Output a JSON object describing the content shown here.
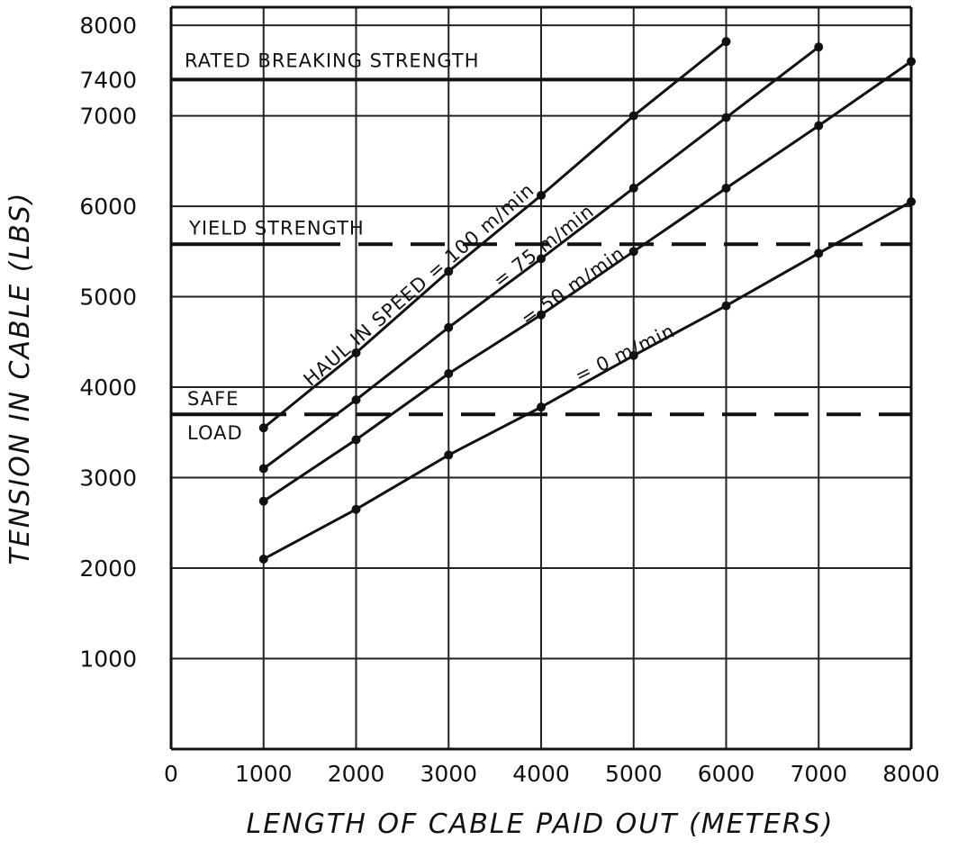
{
  "chart_data": {
    "type": "line",
    "xlabel": "LENGTH OF CABLE PAID OUT (METERS)",
    "ylabel": "TENSION IN CABLE (LBS)",
    "xlim": [
      0,
      8000
    ],
    "ylim": [
      0,
      8200
    ],
    "x_ticks": [
      "0",
      "1000",
      "2000",
      "3000",
      "4000",
      "5000",
      "6000",
      "7000",
      "8000"
    ],
    "y_ticks": [
      "1000",
      "2000",
      "3000",
      "4000",
      "5000",
      "6000",
      "7000",
      "7400",
      "8000"
    ],
    "grid": true,
    "series": [
      {
        "name": "HAUL IN SPEED = 100 m/min",
        "x": [
          1000,
          2000,
          3000,
          4000,
          5000,
          6000
        ],
        "y": [
          3550,
          4380,
          5280,
          6120,
          7000,
          7820
        ]
      },
      {
        "name": "= 75 m/min",
        "x": [
          1000,
          2000,
          3000,
          4000,
          5000,
          6000,
          7000
        ],
        "y": [
          3100,
          3860,
          4660,
          5420,
          6200,
          6980,
          7760
        ]
      },
      {
        "name": "= 50 m/min",
        "x": [
          1000,
          2000,
          3000,
          4000,
          5000,
          6000,
          7000,
          8000
        ],
        "y": [
          2740,
          3420,
          4150,
          4800,
          5500,
          6200,
          6890,
          7600
        ]
      },
      {
        "name": "= 0 m/min",
        "x": [
          1000,
          2000,
          3000,
          4000,
          5000,
          6000,
          7000,
          8000
        ],
        "y": [
          2100,
          2650,
          3250,
          3780,
          4350,
          4900,
          5480,
          6050
        ]
      }
    ],
    "reference_lines": [
      {
        "label": "RATED BREAKING STRENGTH",
        "y": 7400,
        "style": "solid"
      },
      {
        "label": "YIELD STRENGTH",
        "y": 5580,
        "style": "dashed"
      },
      {
        "label_lines": [
          "SAFE",
          "LOAD"
        ],
        "y": 3700,
        "style": "dashed"
      }
    ]
  }
}
